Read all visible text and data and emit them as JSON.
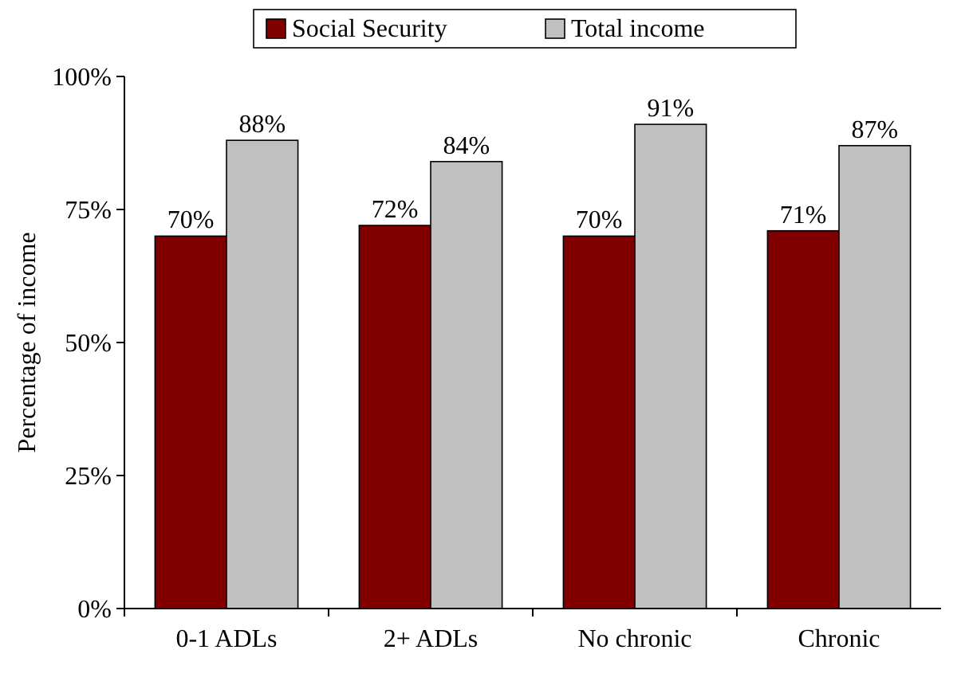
{
  "chart_data": {
    "type": "bar",
    "ylabel": "Percentage of income",
    "categories": [
      "0-1 ADLs",
      "2+ ADLs",
      "No chronic",
      "Chronic"
    ],
    "series": [
      {
        "name": "Social Security",
        "color": "#800000",
        "values": [
          70,
          72,
          70,
          71
        ],
        "value_labels": [
          "70%",
          "72%",
          "70%",
          "71%"
        ]
      },
      {
        "name": "Total income",
        "color": "#c0c0c0",
        "values": [
          88,
          84,
          91,
          87
        ],
        "value_labels": [
          "88%",
          "84%",
          "91%",
          "87%"
        ]
      }
    ],
    "ylim": [
      0,
      100
    ],
    "yticks": [
      {
        "value": 0,
        "label": "0%"
      },
      {
        "value": 25,
        "label": "25%"
      },
      {
        "value": 50,
        "label": "50%"
      },
      {
        "value": 75,
        "label": "75%"
      },
      {
        "value": 100,
        "label": "100%"
      }
    ],
    "legend": "top",
    "grid": false
  }
}
